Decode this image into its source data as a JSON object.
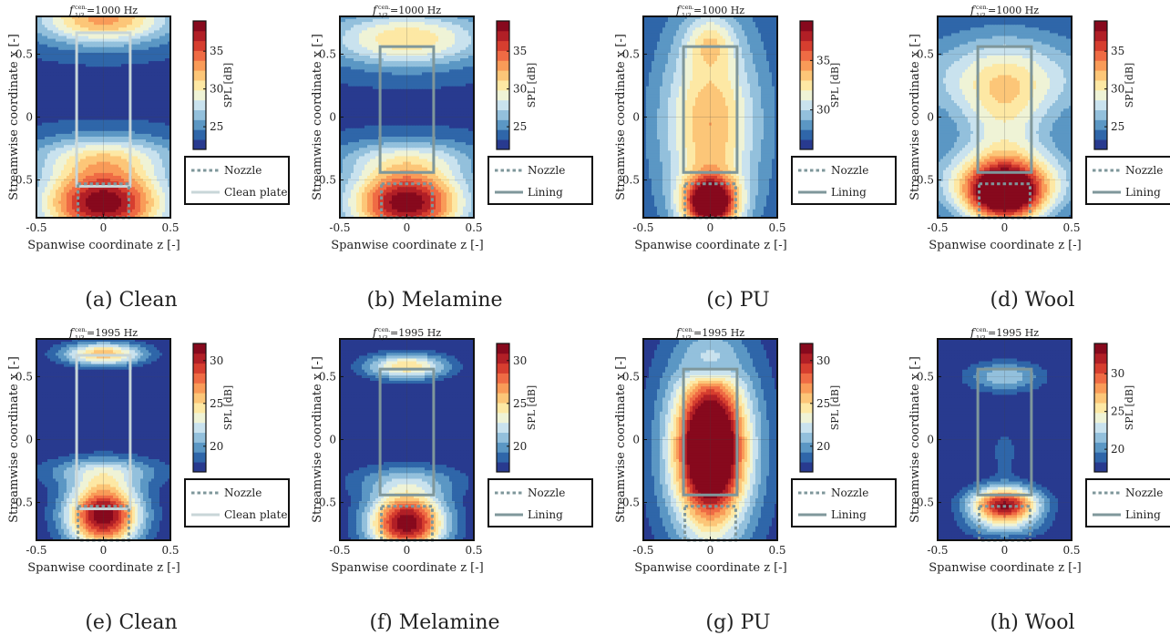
{
  "chart_data": [
    {
      "type": "heatmap",
      "pattern": "clean1000",
      "caption": "(a) Clean",
      "title": "=1000 Hz",
      "freq_symbol": "f",
      "freq_sub": "1/3",
      "freq_sup": "cen.",
      "xlabel": "Spanwise coordinate z [-]",
      "ylabel": "Streamwise coordinate x [-]",
      "colorbar_label": "SPL [dB]",
      "colorbar_range": [
        22,
        39
      ],
      "colorbar_ticks": [
        25,
        30,
        35
      ],
      "xlim": [
        -0.5,
        0.5
      ],
      "ylim": [
        -0.8,
        0.8
      ],
      "x_ticks": [
        "-0.5",
        "0",
        "0.5"
      ],
      "y_ticks": [
        "-0.5",
        "0",
        "0.5"
      ],
      "nozzle": {
        "x": [
          -0.19,
          0.19
        ],
        "y": [
          -0.8,
          -0.53
        ]
      },
      "plate": {
        "x": [
          -0.2,
          0.2
        ],
        "y": [
          -0.55,
          0.67
        ]
      },
      "plate_color": "#c8d6d8",
      "legend": [
        "Nozzle",
        "Clean plate"
      ]
    },
    {
      "type": "heatmap",
      "pattern": "mel1000",
      "caption": "(b) Melamine",
      "title": "=1000 Hz",
      "freq_symbol": "f",
      "freq_sub": "1/3",
      "freq_sup": "cen.",
      "xlabel": "Spanwise coordinate z [-]",
      "ylabel": "Streamwise coordinate x [-]",
      "colorbar_label": "SPL [dB]",
      "colorbar_range": [
        22,
        39
      ],
      "colorbar_ticks": [
        25,
        30,
        35
      ],
      "xlim": [
        -0.5,
        0.5
      ],
      "ylim": [
        -0.8,
        0.8
      ],
      "x_ticks": [
        "-0.5",
        "0",
        "0.5"
      ],
      "y_ticks": [
        "-0.5",
        "0",
        "0.5"
      ],
      "nozzle": {
        "x": [
          -0.19,
          0.19
        ],
        "y": [
          -0.8,
          -0.53
        ]
      },
      "plate": {
        "x": [
          -0.2,
          0.2
        ],
        "y": [
          -0.44,
          0.56
        ]
      },
      "plate_color": "#7f979b",
      "legend": [
        "Nozzle",
        "Lining"
      ]
    },
    {
      "type": "heatmap",
      "pattern": "pu1000",
      "caption": "(c) PU",
      "title": "=1000 Hz",
      "freq_symbol": "f",
      "freq_sub": "1/3",
      "freq_sup": "cen.",
      "xlabel": "Spanwise coordinate z [-]",
      "ylabel": "Streamwise coordinate x [-]",
      "colorbar_label": "SPL [dB]",
      "colorbar_range": [
        26,
        39
      ],
      "colorbar_ticks": [
        30,
        35
      ],
      "xlim": [
        -0.5,
        0.5
      ],
      "ylim": [
        -0.8,
        0.8
      ],
      "x_ticks": [
        "-0.5",
        "0",
        "0.5"
      ],
      "y_ticks": [
        "-0.5",
        "0",
        "0.5"
      ],
      "nozzle": {
        "x": [
          -0.19,
          0.19
        ],
        "y": [
          -0.8,
          -0.53
        ]
      },
      "plate": {
        "x": [
          -0.2,
          0.2
        ],
        "y": [
          -0.44,
          0.56
        ]
      },
      "plate_color": "#7f979b",
      "legend": [
        "Nozzle",
        "Lining"
      ]
    },
    {
      "type": "heatmap",
      "pattern": "wool1000",
      "caption": "(d) Wool",
      "title": "=1000 Hz",
      "freq_symbol": "f",
      "freq_sub": "1/3",
      "freq_sup": "cen.",
      "xlabel": "Spanwise coordinate z [-]",
      "ylabel": "Streamwise coordinate x [-]",
      "colorbar_label": "SPL [dB]",
      "colorbar_range": [
        22,
        39
      ],
      "colorbar_ticks": [
        25,
        30,
        35
      ],
      "xlim": [
        -0.5,
        0.5
      ],
      "ylim": [
        -0.8,
        0.8
      ],
      "x_ticks": [
        "-0.5",
        "0",
        "0.5"
      ],
      "y_ticks": [
        "-0.5",
        "0",
        "0.5"
      ],
      "nozzle": {
        "x": [
          -0.19,
          0.19
        ],
        "y": [
          -0.8,
          -0.53
        ]
      },
      "plate": {
        "x": [
          -0.2,
          0.2
        ],
        "y": [
          -0.44,
          0.56
        ]
      },
      "plate_color": "#7f979b",
      "legend": [
        "Nozzle",
        "Lining"
      ]
    },
    {
      "type": "heatmap",
      "pattern": "clean2000",
      "caption": "(e) Clean",
      "title": "=1995 Hz",
      "freq_symbol": "f",
      "freq_sub": "1/3",
      "freq_sup": "cen.",
      "xlabel": "Spanwise coordinate z [-]",
      "ylabel": "Streamwise coordinate x [-]",
      "colorbar_label": "SPL [dB]",
      "colorbar_range": [
        17,
        32
      ],
      "colorbar_ticks": [
        20,
        25,
        30
      ],
      "xlim": [
        -0.5,
        0.5
      ],
      "ylim": [
        -0.8,
        0.8
      ],
      "x_ticks": [
        "-0.5",
        "0",
        "0.5"
      ],
      "y_ticks": [
        "-0.5",
        "0",
        "0.5"
      ],
      "nozzle": {
        "x": [
          -0.19,
          0.19
        ],
        "y": [
          -0.8,
          -0.53
        ]
      },
      "plate": {
        "x": [
          -0.2,
          0.2
        ],
        "y": [
          -0.55,
          0.67
        ]
      },
      "plate_color": "#c8d6d8",
      "legend": [
        "Nozzle",
        "Clean plate"
      ]
    },
    {
      "type": "heatmap",
      "pattern": "mel2000",
      "caption": "(f) Melamine",
      "title": "=1995 Hz",
      "freq_symbol": "f",
      "freq_sub": "1/3",
      "freq_sup": "cen.",
      "xlabel": "Spanwise coordinate z [-]",
      "ylabel": "Streamwise coordinate x [-]",
      "colorbar_label": "SPL [dB]",
      "colorbar_range": [
        17,
        32
      ],
      "colorbar_ticks": [
        20,
        25,
        30
      ],
      "xlim": [
        -0.5,
        0.5
      ],
      "ylim": [
        -0.8,
        0.8
      ],
      "x_ticks": [
        "-0.5",
        "0",
        "0.5"
      ],
      "y_ticks": [
        "-0.5",
        "0",
        "0.5"
      ],
      "nozzle": {
        "x": [
          -0.19,
          0.19
        ],
        "y": [
          -0.8,
          -0.53
        ]
      },
      "plate": {
        "x": [
          -0.2,
          0.2
        ],
        "y": [
          -0.44,
          0.56
        ]
      },
      "plate_color": "#7f979b",
      "legend": [
        "Nozzle",
        "Lining"
      ]
    },
    {
      "type": "heatmap",
      "pattern": "pu2000",
      "caption": "(g) PU",
      "title": "=1995 Hz",
      "freq_symbol": "f",
      "freq_sub": "1/3",
      "freq_sup": "cen.",
      "xlabel": "Spanwise coordinate z [-]",
      "ylabel": "Streamwise coordinate x [-]",
      "colorbar_label": "SPL [dB]",
      "colorbar_range": [
        17,
        32
      ],
      "colorbar_ticks": [
        20,
        25,
        30
      ],
      "xlim": [
        -0.5,
        0.5
      ],
      "ylim": [
        -0.8,
        0.8
      ],
      "x_ticks": [
        "-0.5",
        "0",
        "0.5"
      ],
      "y_ticks": [
        "-0.5",
        "0",
        "0.5"
      ],
      "nozzle": {
        "x": [
          -0.19,
          0.19
        ],
        "y": [
          -0.8,
          -0.53
        ]
      },
      "plate": {
        "x": [
          -0.2,
          0.2
        ],
        "y": [
          -0.44,
          0.56
        ]
      },
      "plate_color": "#7f979b",
      "legend": [
        "Nozzle",
        "Lining"
      ]
    },
    {
      "type": "heatmap",
      "pattern": "wool2000",
      "caption": "(h) Wool",
      "title": "=1995 Hz",
      "freq_symbol": "f",
      "freq_sub": "1/3",
      "freq_sup": "cen.",
      "xlabel": "Spanwise coordinate z [-]",
      "ylabel": "Streamwise coordinate x [-]",
      "colorbar_label": "SPL [dB]",
      "colorbar_range": [
        17,
        34
      ],
      "colorbar_ticks": [
        20,
        25,
        30
      ],
      "xlim": [
        -0.5,
        0.5
      ],
      "ylim": [
        -0.8,
        0.8
      ],
      "x_ticks": [
        "-0.5",
        "0",
        "0.5"
      ],
      "y_ticks": [
        "-0.5",
        "0",
        "0.5"
      ],
      "nozzle": {
        "x": [
          -0.19,
          0.19
        ],
        "y": [
          -0.8,
          -0.53
        ]
      },
      "plate": {
        "x": [
          -0.2,
          0.2
        ],
        "y": [
          -0.44,
          0.56
        ]
      },
      "plate_color": "#7f979b",
      "legend": [
        "Nozzle",
        "Lining"
      ]
    }
  ],
  "colormap": [
    "#283a8f",
    "#2f66a9",
    "#5b97c4",
    "#93c0dc",
    "#c9e2ee",
    "#eff3d6",
    "#fde8a4",
    "#fcc678",
    "#f99b58",
    "#ef6b44",
    "#d63e2f",
    "#b11f26",
    "#87091d"
  ],
  "nozzle_color": "#7f979b"
}
